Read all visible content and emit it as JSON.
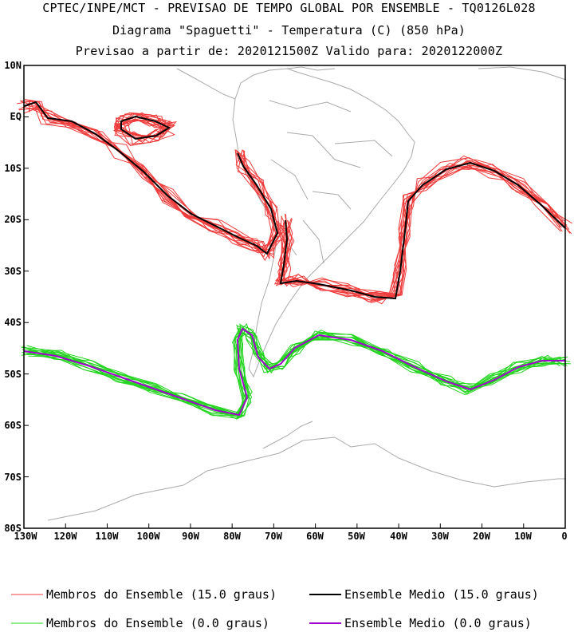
{
  "header": {
    "line1": "CPTEC/INPE/MCT - PREVISAO DE TEMPO GLOBAL POR ENSEMBLE - TQ0126L028",
    "line2": "Diagrama \"Spaguetti\" - Temperatura (C) (850 hPa)",
    "line3": "Previsao a partir de: 2020121500Z  Valido para: 2020122000Z"
  },
  "map": {
    "lon_range": [
      -130,
      0
    ],
    "lat_range": [
      -80,
      10
    ],
    "lat_labels": [
      "10N",
      "EQ",
      "10S",
      "20S",
      "30S",
      "40S",
      "50S",
      "60S",
      "70S",
      "80S"
    ],
    "lon_labels": [
      "130W",
      "120W",
      "110W",
      "100W",
      "90W",
      "80W",
      "70W",
      "60W",
      "50W",
      "40W",
      "30W",
      "20W",
      "10W",
      "0"
    ],
    "colors": {
      "members_15": "#ef3b3b",
      "mean_15": "#000000",
      "members_0": "#22d41e",
      "mean_0": "#a100cc",
      "coast": "#aaaaaa"
    }
  },
  "legend": {
    "members_15": "Membros do Ensemble (15.0 graus)",
    "mean_15": "Ensemble Medio (15.0 graus)",
    "members_0": "Membros do Ensemble (0.0 graus)",
    "mean_0": "Ensemble Medio (0.0 graus)"
  }
}
